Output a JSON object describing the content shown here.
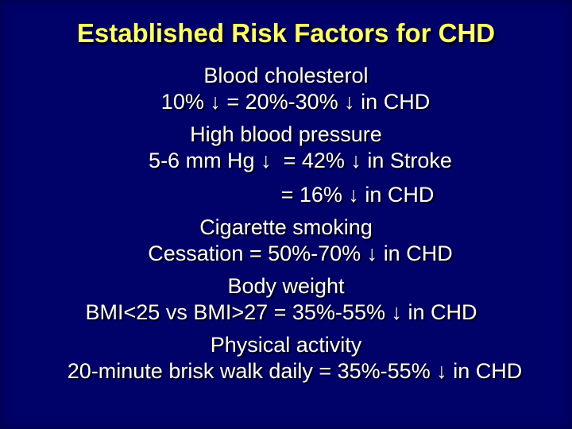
{
  "slide": {
    "title": "Established Risk Factors for CHD",
    "colors": {
      "background": "#01016a",
      "title_text": "#ffff66",
      "body_text": "#ffffff"
    },
    "sections": [
      {
        "heading": "Blood cholesterol",
        "lines": [
          "10% ↓ = 20%-30% ↓ in CHD"
        ]
      },
      {
        "heading": "High blood pressure",
        "lines": [
          "5-6 mm Hg ↓  = 42% ↓ in Stroke",
          "= 16% ↓ in CHD"
        ]
      },
      {
        "heading": "Cigarette smoking",
        "lines": [
          "Cessation = 50%-70% ↓ in CHD"
        ]
      },
      {
        "heading": "Body weight",
        "lines": [
          "BMI<25 vs BMI>27 = 35%-55% ↓ in CHD"
        ]
      },
      {
        "heading": "Physical activity",
        "lines": [
          "20-minute brisk walk daily = 35%-55% ↓ in CHD"
        ]
      }
    ]
  }
}
